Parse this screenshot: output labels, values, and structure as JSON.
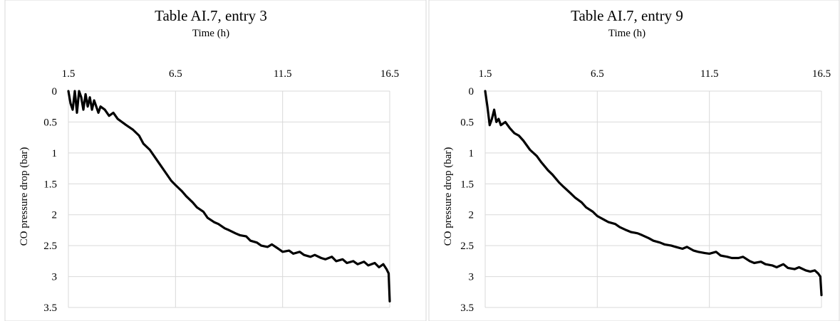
{
  "chart_data": [
    {
      "type": "line",
      "title": "Table AI.7, entry 3",
      "xlabel": "Time (h)",
      "ylabel": "CO pressure drop (bar)",
      "xlim": [
        1.5,
        16.5
      ],
      "ylim": [
        0,
        3.5
      ],
      "y_inverted": true,
      "x_axis_position": "top",
      "x_ticks": [
        "1.5",
        "6.5",
        "11.5",
        "16.5"
      ],
      "y_ticks": [
        "0",
        "0.5",
        "1",
        "1.5",
        "2",
        "2.5",
        "3",
        "3.5"
      ],
      "grid": true,
      "series": [
        {
          "color": "#000000",
          "x": [
            1.5,
            1.6,
            1.7,
            1.8,
            1.9,
            2.0,
            2.1,
            2.2,
            2.3,
            2.4,
            2.5,
            2.6,
            2.7,
            2.8,
            2.9,
            3.0,
            3.2,
            3.4,
            3.6,
            3.8,
            4.0,
            4.2,
            4.5,
            4.8,
            5.0,
            5.3,
            5.5,
            5.8,
            6.0,
            6.3,
            6.5,
            6.8,
            7.0,
            7.3,
            7.5,
            7.8,
            8.0,
            8.3,
            8.5,
            8.8,
            9.0,
            9.3,
            9.5,
            9.8,
            10.0,
            10.3,
            10.5,
            10.8,
            11.0,
            11.3,
            11.5,
            11.8,
            12.0,
            12.3,
            12.5,
            12.8,
            13.0,
            13.3,
            13.5,
            13.8,
            14.0,
            14.3,
            14.5,
            14.8,
            15.0,
            15.3,
            15.5,
            15.8,
            16.0,
            16.2,
            16.35,
            16.45,
            16.5
          ],
          "y": [
            0.0,
            0.2,
            0.3,
            0.0,
            0.35,
            0.0,
            0.1,
            0.3,
            0.05,
            0.25,
            0.1,
            0.3,
            0.15,
            0.25,
            0.35,
            0.25,
            0.3,
            0.4,
            0.35,
            0.45,
            0.5,
            0.55,
            0.62,
            0.72,
            0.85,
            0.95,
            1.05,
            1.2,
            1.3,
            1.45,
            1.52,
            1.62,
            1.7,
            1.8,
            1.88,
            1.95,
            2.05,
            2.12,
            2.15,
            2.22,
            2.25,
            2.3,
            2.33,
            2.35,
            2.42,
            2.45,
            2.5,
            2.52,
            2.48,
            2.55,
            2.6,
            2.58,
            2.63,
            2.6,
            2.65,
            2.68,
            2.65,
            2.7,
            2.72,
            2.68,
            2.75,
            2.72,
            2.78,
            2.75,
            2.8,
            2.76,
            2.82,
            2.78,
            2.85,
            2.8,
            2.88,
            2.95,
            3.4
          ]
        }
      ]
    },
    {
      "type": "line",
      "title": "Table AI.7, entry 9",
      "xlabel": "Time (h)",
      "ylabel": "CO pressure drop (bar)",
      "xlim": [
        1.5,
        16.5
      ],
      "ylim": [
        0,
        3.5
      ],
      "y_inverted": true,
      "x_axis_position": "top",
      "x_ticks": [
        "1.5",
        "6.5",
        "11.5",
        "16.5"
      ],
      "y_ticks": [
        "0",
        "0.5",
        "1",
        "1.5",
        "2",
        "2.5",
        "3",
        "3.5"
      ],
      "grid": true,
      "series": [
        {
          "color": "#000000",
          "x": [
            1.5,
            1.6,
            1.7,
            1.8,
            1.9,
            2.0,
            2.1,
            2.2,
            2.4,
            2.6,
            2.8,
            3.0,
            3.2,
            3.5,
            3.8,
            4.0,
            4.3,
            4.5,
            4.8,
            5.0,
            5.3,
            5.5,
            5.8,
            6.0,
            6.3,
            6.5,
            6.8,
            7.0,
            7.3,
            7.5,
            7.8,
            8.0,
            8.3,
            8.5,
            8.8,
            9.0,
            9.3,
            9.5,
            9.8,
            10.0,
            10.3,
            10.5,
            10.8,
            11.0,
            11.3,
            11.5,
            11.8,
            12.0,
            12.3,
            12.5,
            12.8,
            13.0,
            13.3,
            13.5,
            13.8,
            14.0,
            14.3,
            14.5,
            14.8,
            15.0,
            15.3,
            15.5,
            15.8,
            16.0,
            16.2,
            16.35,
            16.45,
            16.5
          ],
          "y": [
            0.0,
            0.25,
            0.55,
            0.45,
            0.3,
            0.5,
            0.45,
            0.55,
            0.5,
            0.6,
            0.68,
            0.72,
            0.8,
            0.95,
            1.05,
            1.15,
            1.28,
            1.35,
            1.48,
            1.55,
            1.65,
            1.72,
            1.8,
            1.88,
            1.95,
            2.02,
            2.08,
            2.12,
            2.15,
            2.2,
            2.25,
            2.28,
            2.3,
            2.33,
            2.38,
            2.42,
            2.45,
            2.48,
            2.5,
            2.52,
            2.55,
            2.52,
            2.58,
            2.6,
            2.62,
            2.63,
            2.6,
            2.66,
            2.68,
            2.7,
            2.7,
            2.68,
            2.75,
            2.78,
            2.76,
            2.8,
            2.82,
            2.85,
            2.8,
            2.86,
            2.88,
            2.85,
            2.9,
            2.92,
            2.9,
            2.95,
            3.0,
            3.3
          ]
        }
      ]
    }
  ]
}
